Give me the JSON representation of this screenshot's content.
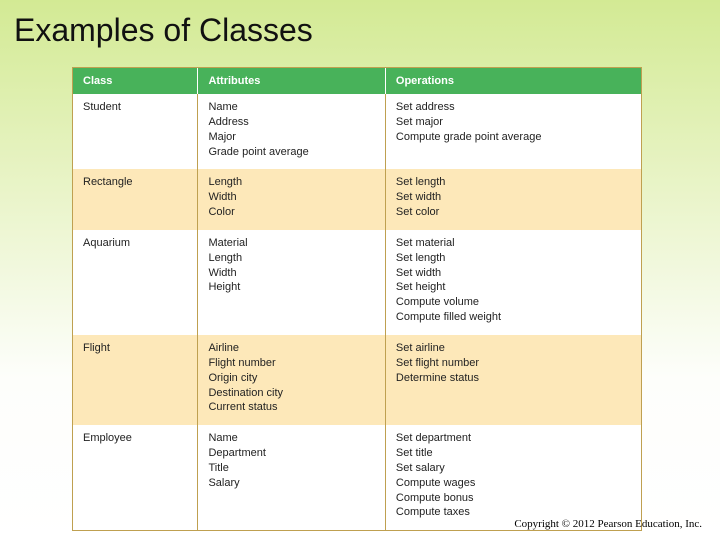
{
  "title": "Examples of Classes",
  "copyright": "Copyright © 2012 Pearson Education, Inc.",
  "table": {
    "header_bg": "#48b25a",
    "header_fg": "#ffffff",
    "alt_row_bg": "#fde8b9",
    "border_color": "#bfa050",
    "columns": [
      "Class",
      "Attributes",
      "Operations"
    ],
    "rows": [
      {
        "class": "Student",
        "attributes": "Name\nAddress\nMajor\nGrade point average",
        "operations": "Set address\nSet major\nCompute grade point average"
      },
      {
        "class": "Rectangle",
        "attributes": "Length\nWidth\nColor",
        "operations": "Set length\nSet width\nSet color"
      },
      {
        "class": "Aquarium",
        "attributes": "Material\nLength\nWidth\nHeight",
        "operations": "Set material\nSet length\nSet width\nSet height\nCompute volume\nCompute filled weight"
      },
      {
        "class": "Flight",
        "attributes": "Airline\nFlight number\nOrigin city\nDestination city\nCurrent status",
        "operations": "Set airline\nSet flight number\nDetermine status"
      },
      {
        "class": "Employee",
        "attributes": "Name\nDepartment\nTitle\nSalary",
        "operations": "Set department\nSet title\nSet salary\nCompute wages\nCompute bonus\nCompute taxes"
      }
    ]
  }
}
